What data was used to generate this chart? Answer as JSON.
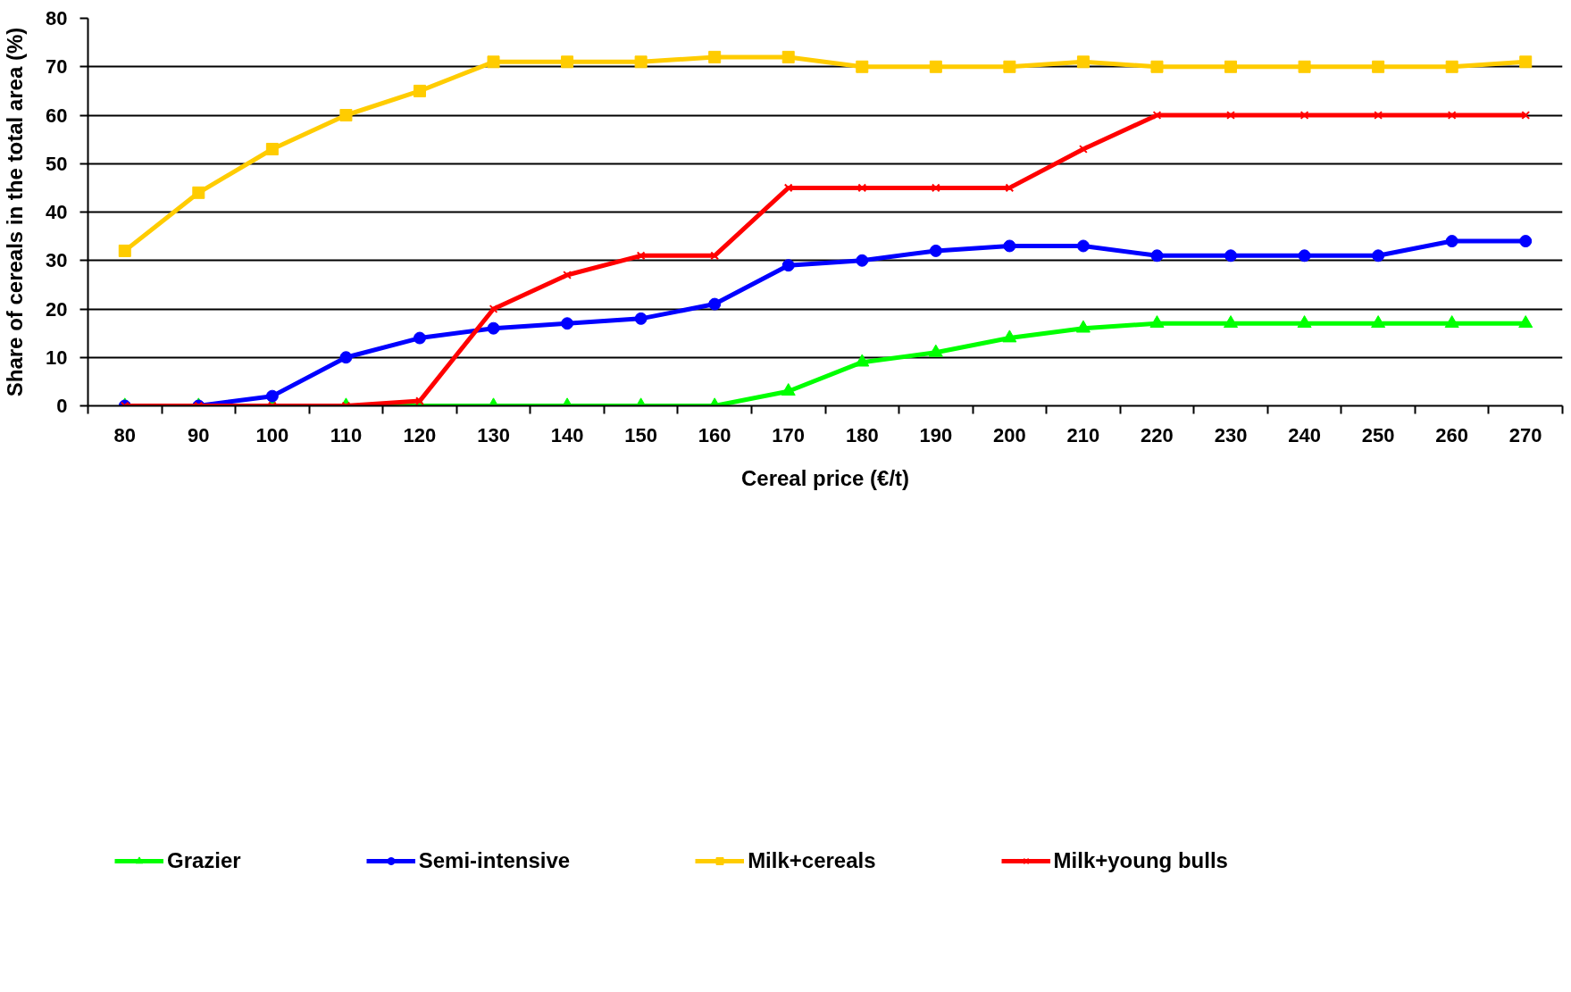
{
  "chart_data": {
    "type": "line",
    "xlabel": "Cereal price (€/t)",
    "ylabel": "Share of cereals in the total area (%)",
    "categories": [
      "80",
      "90",
      "100",
      "110",
      "120",
      "130",
      "140",
      "150",
      "160",
      "170",
      "180",
      "190",
      "200",
      "210",
      "220",
      "230",
      "240",
      "250",
      "260",
      "270"
    ],
    "ylim": [
      0,
      80
    ],
    "yticks": [
      0,
      10,
      20,
      30,
      40,
      50,
      60,
      70,
      80
    ],
    "grid": "y",
    "legend": "bottom",
    "line_style": "solid",
    "series": [
      {
        "name": "Grazier",
        "color": "#00ff00",
        "marker": "triangle",
        "values": [
          0,
          0,
          0,
          0,
          0,
          0,
          0,
          0,
          0,
          3,
          9,
          11,
          14,
          16,
          17,
          17,
          17,
          17,
          17,
          17
        ]
      },
      {
        "name": "Semi-intensive",
        "color": "#0000ff",
        "marker": "circle",
        "values": [
          0,
          0,
          2,
          10,
          14,
          16,
          17,
          18,
          21,
          29,
          30,
          32,
          33,
          33,
          31,
          31,
          31,
          31,
          34,
          34
        ]
      },
      {
        "name": "Milk+cereals",
        "color": "#ffcc00",
        "marker": "square",
        "values": [
          32,
          44,
          53,
          60,
          65,
          71,
          71,
          71,
          72,
          72,
          70,
          70,
          70,
          71,
          70,
          70,
          70,
          70,
          70,
          71
        ]
      },
      {
        "name": "Milk+young bulls",
        "color": "#ff0000",
        "marker": "cross",
        "values": [
          0,
          0,
          0,
          0,
          1,
          20,
          27,
          31,
          31,
          45,
          45,
          45,
          45,
          53,
          60,
          60,
          60,
          60,
          60,
          60
        ]
      }
    ]
  }
}
